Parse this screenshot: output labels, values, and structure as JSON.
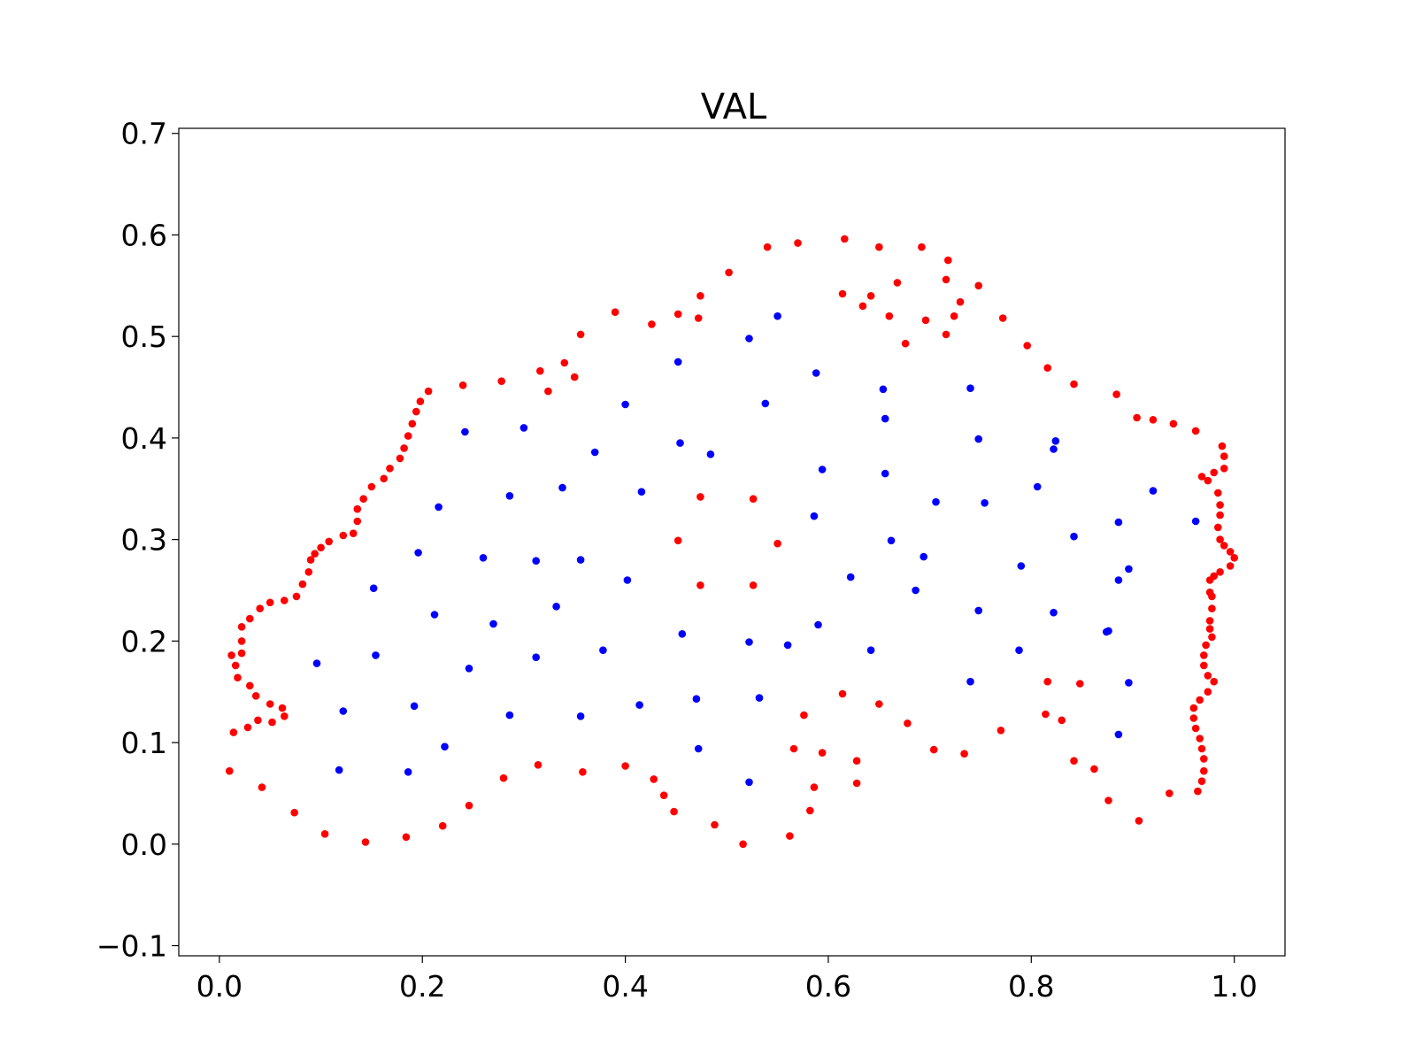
{
  "chart_data": {
    "type": "scatter",
    "title": "VAL",
    "xlabel": "",
    "ylabel": "",
    "xlim": [
      -0.04,
      1.05
    ],
    "ylim": [
      -0.11,
      0.705
    ],
    "xticks": [
      0.0,
      0.2,
      0.4,
      0.6,
      0.8,
      1.0
    ],
    "xtick_labels": [
      "0.0",
      "0.2",
      "0.4",
      "0.6",
      "0.8",
      "1.0"
    ],
    "yticks": [
      -0.1,
      0.0,
      0.1,
      0.2,
      0.3,
      0.4,
      0.5,
      0.6,
      0.7
    ],
    "ytick_labels": [
      "−0.1",
      "0.0",
      "0.1",
      "0.2",
      "0.3",
      "0.4",
      "0.5",
      "0.6",
      "0.7"
    ],
    "grid": false,
    "legend": "none",
    "series": [
      {
        "color": "#ff0000",
        "points": [
          [
            0.01,
            0.072
          ],
          [
            0.014,
            0.11
          ],
          [
            0.028,
            0.115
          ],
          [
            0.042,
            0.056
          ],
          [
            0.052,
            0.12
          ],
          [
            0.062,
            0.134
          ],
          [
            0.064,
            0.126
          ],
          [
            0.038,
            0.122
          ],
          [
            0.036,
            0.146
          ],
          [
            0.05,
            0.138
          ],
          [
            0.03,
            0.156
          ],
          [
            0.018,
            0.164
          ],
          [
            0.016,
            0.176
          ],
          [
            0.012,
            0.186
          ],
          [
            0.022,
            0.188
          ],
          [
            0.022,
            0.2
          ],
          [
            0.022,
            0.214
          ],
          [
            0.03,
            0.222
          ],
          [
            0.04,
            0.232
          ],
          [
            0.05,
            0.238
          ],
          [
            0.064,
            0.24
          ],
          [
            0.076,
            0.244
          ],
          [
            0.082,
            0.256
          ],
          [
            0.088,
            0.268
          ],
          [
            0.09,
            0.28
          ],
          [
            0.094,
            0.286
          ],
          [
            0.1,
            0.292
          ],
          [
            0.108,
            0.298
          ],
          [
            0.122,
            0.304
          ],
          [
            0.132,
            0.306
          ],
          [
            0.136,
            0.318
          ],
          [
            0.136,
            0.33
          ],
          [
            0.142,
            0.34
          ],
          [
            0.15,
            0.352
          ],
          [
            0.162,
            0.36
          ],
          [
            0.168,
            0.37
          ],
          [
            0.178,
            0.38
          ],
          [
            0.182,
            0.39
          ],
          [
            0.186,
            0.402
          ],
          [
            0.19,
            0.414
          ],
          [
            0.194,
            0.426
          ],
          [
            0.198,
            0.436
          ],
          [
            0.206,
            0.446
          ],
          [
            0.24,
            0.452
          ],
          [
            0.278,
            0.456
          ],
          [
            0.316,
            0.466
          ],
          [
            0.324,
            0.446
          ],
          [
            0.34,
            0.474
          ],
          [
            0.35,
            0.46
          ],
          [
            0.356,
            0.502
          ],
          [
            0.39,
            0.524
          ],
          [
            0.426,
            0.512
          ],
          [
            0.452,
            0.522
          ],
          [
            0.472,
            0.518
          ],
          [
            0.474,
            0.54
          ],
          [
            0.502,
            0.563
          ],
          [
            0.54,
            0.588
          ],
          [
            0.57,
            0.592
          ],
          [
            0.616,
            0.596
          ],
          [
            0.65,
            0.588
          ],
          [
            0.692,
            0.588
          ],
          [
            0.718,
            0.575
          ],
          [
            0.748,
            0.55
          ],
          [
            0.614,
            0.542
          ],
          [
            0.634,
            0.53
          ],
          [
            0.642,
            0.54
          ],
          [
            0.668,
            0.553
          ],
          [
            0.66,
            0.52
          ],
          [
            0.676,
            0.493
          ],
          [
            0.696,
            0.516
          ],
          [
            0.716,
            0.502
          ],
          [
            0.716,
            0.556
          ],
          [
            0.724,
            0.52
          ],
          [
            0.73,
            0.534
          ],
          [
            0.772,
            0.518
          ],
          [
            0.796,
            0.491
          ],
          [
            0.816,
            0.469
          ],
          [
            0.842,
            0.453
          ],
          [
            0.884,
            0.443
          ],
          [
            0.904,
            0.42
          ],
          [
            0.92,
            0.418
          ],
          [
            0.94,
            0.414
          ],
          [
            0.962,
            0.407
          ],
          [
            0.988,
            0.392
          ],
          [
            0.99,
            0.382
          ],
          [
            0.99,
            0.37
          ],
          [
            0.98,
            0.366
          ],
          [
            0.968,
            0.362
          ],
          [
            0.974,
            0.358
          ],
          [
            0.984,
            0.346
          ],
          [
            0.986,
            0.334
          ],
          [
            0.986,
            0.324
          ],
          [
            0.984,
            0.312
          ],
          [
            0.986,
            0.3
          ],
          [
            0.99,
            0.294
          ],
          [
            0.996,
            0.288
          ],
          [
            1.0,
            0.282
          ],
          [
            0.996,
            0.274
          ],
          [
            0.986,
            0.268
          ],
          [
            0.98,
            0.264
          ],
          [
            0.976,
            0.26
          ],
          [
            0.976,
            0.248
          ],
          [
            0.978,
            0.244
          ],
          [
            0.978,
            0.232
          ],
          [
            0.976,
            0.22
          ],
          [
            0.976,
            0.212
          ],
          [
            0.978,
            0.204
          ],
          [
            0.972,
            0.196
          ],
          [
            0.97,
            0.186
          ],
          [
            0.97,
            0.176
          ],
          [
            0.974,
            0.166
          ],
          [
            0.98,
            0.16
          ],
          [
            0.974,
            0.15
          ],
          [
            0.966,
            0.142
          ],
          [
            0.96,
            0.134
          ],
          [
            0.96,
            0.124
          ],
          [
            0.962,
            0.114
          ],
          [
            0.966,
            0.104
          ],
          [
            0.968,
            0.094
          ],
          [
            0.97,
            0.084
          ],
          [
            0.97,
            0.072
          ],
          [
            0.968,
            0.062
          ],
          [
            0.964,
            0.052
          ],
          [
            0.936,
            0.05
          ],
          [
            0.906,
            0.023
          ],
          [
            0.876,
            0.043
          ],
          [
            0.862,
            0.074
          ],
          [
            0.842,
            0.082
          ],
          [
            0.848,
            0.158
          ],
          [
            0.83,
            0.122
          ],
          [
            0.814,
            0.128
          ],
          [
            0.816,
            0.16
          ],
          [
            0.77,
            0.112
          ],
          [
            0.734,
            0.089
          ],
          [
            0.704,
            0.093
          ],
          [
            0.678,
            0.119
          ],
          [
            0.65,
            0.138
          ],
          [
            0.614,
            0.148
          ],
          [
            0.628,
            0.082
          ],
          [
            0.628,
            0.06
          ],
          [
            0.594,
            0.09
          ],
          [
            0.586,
            0.056
          ],
          [
            0.582,
            0.033
          ],
          [
            0.576,
            0.127
          ],
          [
            0.566,
            0.094
          ],
          [
            0.562,
            0.008
          ],
          [
            0.516,
            0.0
          ],
          [
            0.488,
            0.019
          ],
          [
            0.448,
            0.032
          ],
          [
            0.438,
            0.048
          ],
          [
            0.428,
            0.064
          ],
          [
            0.4,
            0.077
          ],
          [
            0.358,
            0.071
          ],
          [
            0.314,
            0.078
          ],
          [
            0.28,
            0.065
          ],
          [
            0.246,
            0.038
          ],
          [
            0.22,
            0.018
          ],
          [
            0.184,
            0.007
          ],
          [
            0.144,
            0.002
          ],
          [
            0.104,
            0.01
          ],
          [
            0.074,
            0.031
          ],
          [
            0.474,
            0.342
          ],
          [
            0.526,
            0.34
          ],
          [
            0.452,
            0.299
          ],
          [
            0.55,
            0.296
          ],
          [
            0.474,
            0.255
          ],
          [
            0.526,
            0.255
          ]
        ]
      },
      {
        "color": "#0000ff",
        "points": [
          [
            0.522,
            0.498
          ],
          [
            0.55,
            0.52
          ],
          [
            0.452,
            0.475
          ],
          [
            0.588,
            0.464
          ],
          [
            0.4,
            0.433
          ],
          [
            0.538,
            0.434
          ],
          [
            0.654,
            0.448
          ],
          [
            0.74,
            0.449
          ],
          [
            0.242,
            0.406
          ],
          [
            0.3,
            0.41
          ],
          [
            0.37,
            0.386
          ],
          [
            0.454,
            0.395
          ],
          [
            0.484,
            0.384
          ],
          [
            0.656,
            0.419
          ],
          [
            0.748,
            0.399
          ],
          [
            0.824,
            0.397
          ],
          [
            0.822,
            0.389
          ],
          [
            0.216,
            0.332
          ],
          [
            0.286,
            0.343
          ],
          [
            0.338,
            0.351
          ],
          [
            0.416,
            0.347
          ],
          [
            0.594,
            0.369
          ],
          [
            0.656,
            0.365
          ],
          [
            0.706,
            0.337
          ],
          [
            0.754,
            0.336
          ],
          [
            0.806,
            0.352
          ],
          [
            0.92,
            0.348
          ],
          [
            0.196,
            0.287
          ],
          [
            0.26,
            0.282
          ],
          [
            0.312,
            0.279
          ],
          [
            0.356,
            0.28
          ],
          [
            0.586,
            0.323
          ],
          [
            0.662,
            0.299
          ],
          [
            0.694,
            0.283
          ],
          [
            0.842,
            0.303
          ],
          [
            0.886,
            0.317
          ],
          [
            0.962,
            0.318
          ],
          [
            0.152,
            0.252
          ],
          [
            0.402,
            0.26
          ],
          [
            0.622,
            0.263
          ],
          [
            0.686,
            0.25
          ],
          [
            0.79,
            0.274
          ],
          [
            0.886,
            0.26
          ],
          [
            0.896,
            0.271
          ],
          [
            0.212,
            0.226
          ],
          [
            0.27,
            0.217
          ],
          [
            0.332,
            0.234
          ],
          [
            0.456,
            0.207
          ],
          [
            0.522,
            0.199
          ],
          [
            0.56,
            0.196
          ],
          [
            0.59,
            0.216
          ],
          [
            0.748,
            0.23
          ],
          [
            0.822,
            0.228
          ],
          [
            0.874,
            0.209
          ],
          [
            0.876,
            0.21
          ],
          [
            0.096,
            0.178
          ],
          [
            0.154,
            0.186
          ],
          [
            0.246,
            0.173
          ],
          [
            0.312,
            0.184
          ],
          [
            0.378,
            0.191
          ],
          [
            0.642,
            0.191
          ],
          [
            0.788,
            0.191
          ],
          [
            0.122,
            0.131
          ],
          [
            0.192,
            0.136
          ],
          [
            0.286,
            0.127
          ],
          [
            0.356,
            0.126
          ],
          [
            0.414,
            0.137
          ],
          [
            0.47,
            0.143
          ],
          [
            0.532,
            0.144
          ],
          [
            0.74,
            0.16
          ],
          [
            0.896,
            0.159
          ],
          [
            0.118,
            0.073
          ],
          [
            0.186,
            0.071
          ],
          [
            0.222,
            0.096
          ],
          [
            0.472,
            0.094
          ],
          [
            0.522,
            0.061
          ],
          [
            0.886,
            0.108
          ]
        ]
      }
    ]
  }
}
